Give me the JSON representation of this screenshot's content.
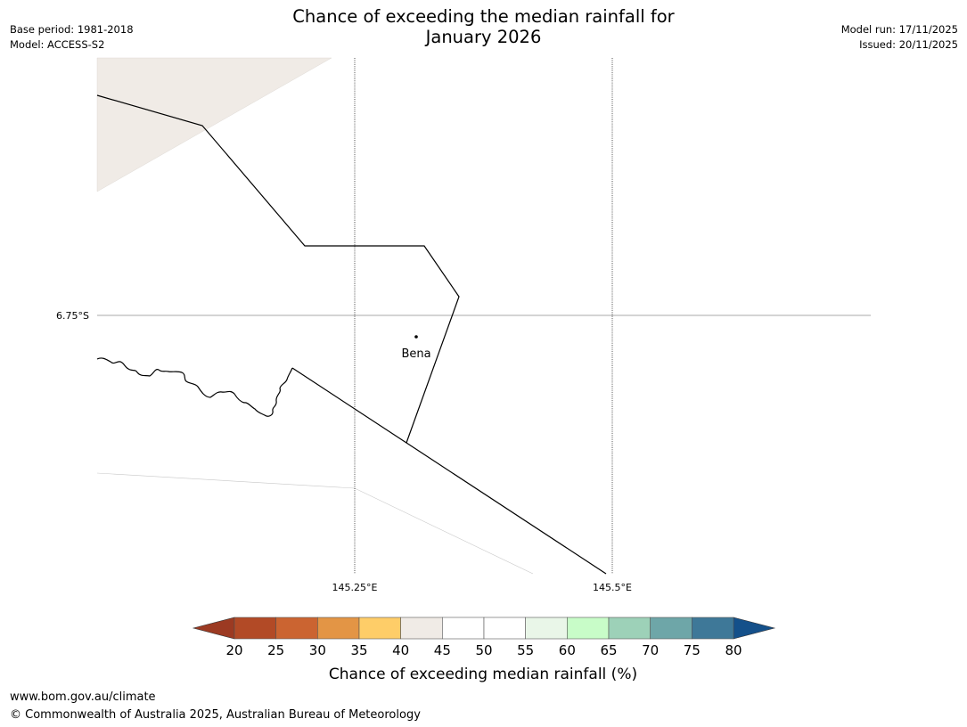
{
  "header": {
    "title_line1": "Chance of exceeding the median rainfall for",
    "title_line2": "January 2026",
    "base_period": "Base period: 1981-2018",
    "model": "Model: ACCESS-S2",
    "model_run": "Model run: 17/11/2025",
    "issued": "Issued: 20/11/2025"
  },
  "map": {
    "lat_label": "6.75°S",
    "lon_labels": [
      "145.25°E",
      "145.5°E"
    ],
    "place_name": "Bena",
    "colors": {
      "region_fill": "#f0ebe6",
      "boundary": "#000000",
      "gridline": "#000000"
    }
  },
  "legend": {
    "title": "Chance of exceeding median rainfall (%)",
    "ticks": [
      "20",
      "25",
      "30",
      "35",
      "40",
      "45",
      "50",
      "55",
      "60",
      "65",
      "70",
      "75",
      "80"
    ],
    "under_color": "#9c3a22",
    "over_color": "#14508a",
    "bin_colors": [
      "#b24a26",
      "#cb6431",
      "#e39545",
      "#fecd68",
      "#f0ebe6",
      "#ffffff",
      "#ffffff",
      "#e9f6e8",
      "#c8fcc8",
      "#9dd1b8",
      "#6ea6a8",
      "#3e7898"
    ]
  },
  "footer": {
    "url": "www.bom.gov.au/climate",
    "copyright": "© Commonwealth of Australia 2025, Australian Bureau of Meteorology"
  }
}
